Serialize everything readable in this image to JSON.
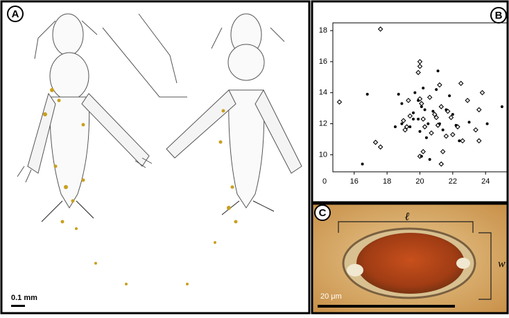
{
  "panels": {
    "a": {
      "label": "A",
      "scale_bar": "0.1 mm"
    },
    "b": {
      "label": "B"
    },
    "c": {
      "label": "C",
      "length_label": "ℓ",
      "width_label": "w",
      "scale_bar": "20 μm"
    }
  },
  "chart_data": {
    "type": "scatter",
    "corner_label": "0",
    "xlim": [
      14.7,
      25.3
    ],
    "ylim": [
      8.9,
      18.5
    ],
    "xticks": [
      16,
      18,
      20,
      22,
      24
    ],
    "yticks": [
      10,
      12,
      14,
      16,
      18
    ],
    "series": [
      {
        "marker": "diamond",
        "color": "#000000",
        "x": [
          15.1,
          17.6,
          17.3,
          17.6,
          19.0,
          19.2,
          19.4,
          19.1,
          20.0,
          20.0,
          19.9,
          20.0,
          20.1,
          20.2,
          20.3,
          20.2,
          20.0,
          20.6,
          20.9,
          21.0,
          21.2,
          21.3,
          21.1,
          21.4,
          21.3,
          21.7,
          21.9,
          22.0,
          22.3,
          22.5,
          22.6,
          22.9,
          23.6,
          23.4,
          23.8,
          23.6,
          19.3,
          20.7,
          21.6
        ],
        "values": [
          13.4,
          18.1,
          10.8,
          10.5,
          12.2,
          11.8,
          12.5,
          11.6,
          16.0,
          15.7,
          15.3,
          13.6,
          13.3,
          12.3,
          11.8,
          10.2,
          9.9,
          13.7,
          12.6,
          12.4,
          14.5,
          13.1,
          11.9,
          10.2,
          9.4,
          12.8,
          12.4,
          11.3,
          11.8,
          14.6,
          10.9,
          13.5,
          12.9,
          11.6,
          14.0,
          10.9,
          13.5,
          11.4,
          11.2
        ]
      },
      {
        "marker": "dot",
        "color": "#000000",
        "x": [
          16.5,
          16.8,
          18.5,
          18.7,
          18.9,
          18.9,
          19.4,
          19.6,
          19.7,
          19.9,
          19.9,
          20.1,
          20.2,
          20.3,
          20.0,
          20.4,
          20.5,
          20.6,
          20.8,
          21.0,
          21.1,
          21.2,
          21.4,
          21.6,
          21.8,
          22.0,
          22.2,
          22.4,
          23.0,
          24.1,
          25.0,
          20.1,
          19.6
        ],
        "values": [
          9.4,
          13.9,
          11.8,
          13.9,
          13.3,
          12.0,
          11.8,
          12.7,
          14.0,
          13.5,
          12.3,
          13.1,
          14.3,
          12.9,
          11.5,
          11.1,
          12.0,
          9.7,
          12.8,
          14.2,
          15.4,
          12.0,
          11.6,
          12.9,
          13.8,
          12.6,
          11.9,
          10.9,
          12.1,
          12.0,
          13.1,
          9.9,
          12.3
        ]
      }
    ]
  }
}
